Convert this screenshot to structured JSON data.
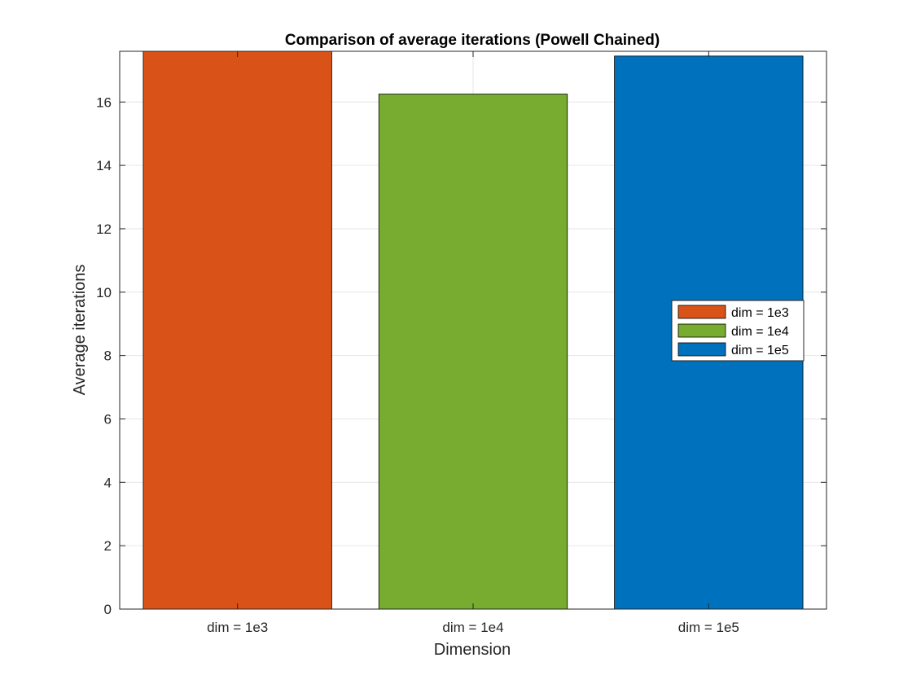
{
  "chart_data": {
    "type": "bar",
    "title": "Comparison of average iterations (Powell Chained)",
    "xlabel": "Dimension",
    "ylabel": "Average iterations",
    "categories": [
      "dim = 1e3",
      "dim = 1e4",
      "dim = 1e5"
    ],
    "values": [
      17.6,
      16.25,
      17.45
    ],
    "colors": [
      "#D95319",
      "#77AC30",
      "#0072BD"
    ],
    "ylim": [
      0,
      17.6
    ],
    "yticks": [
      0,
      2,
      4,
      6,
      8,
      10,
      12,
      14,
      16
    ],
    "grid": true,
    "legend": {
      "position": "right",
      "entries": [
        "dim = 1e3",
        "dim = 1e4",
        "dim = 1e5"
      ]
    }
  }
}
